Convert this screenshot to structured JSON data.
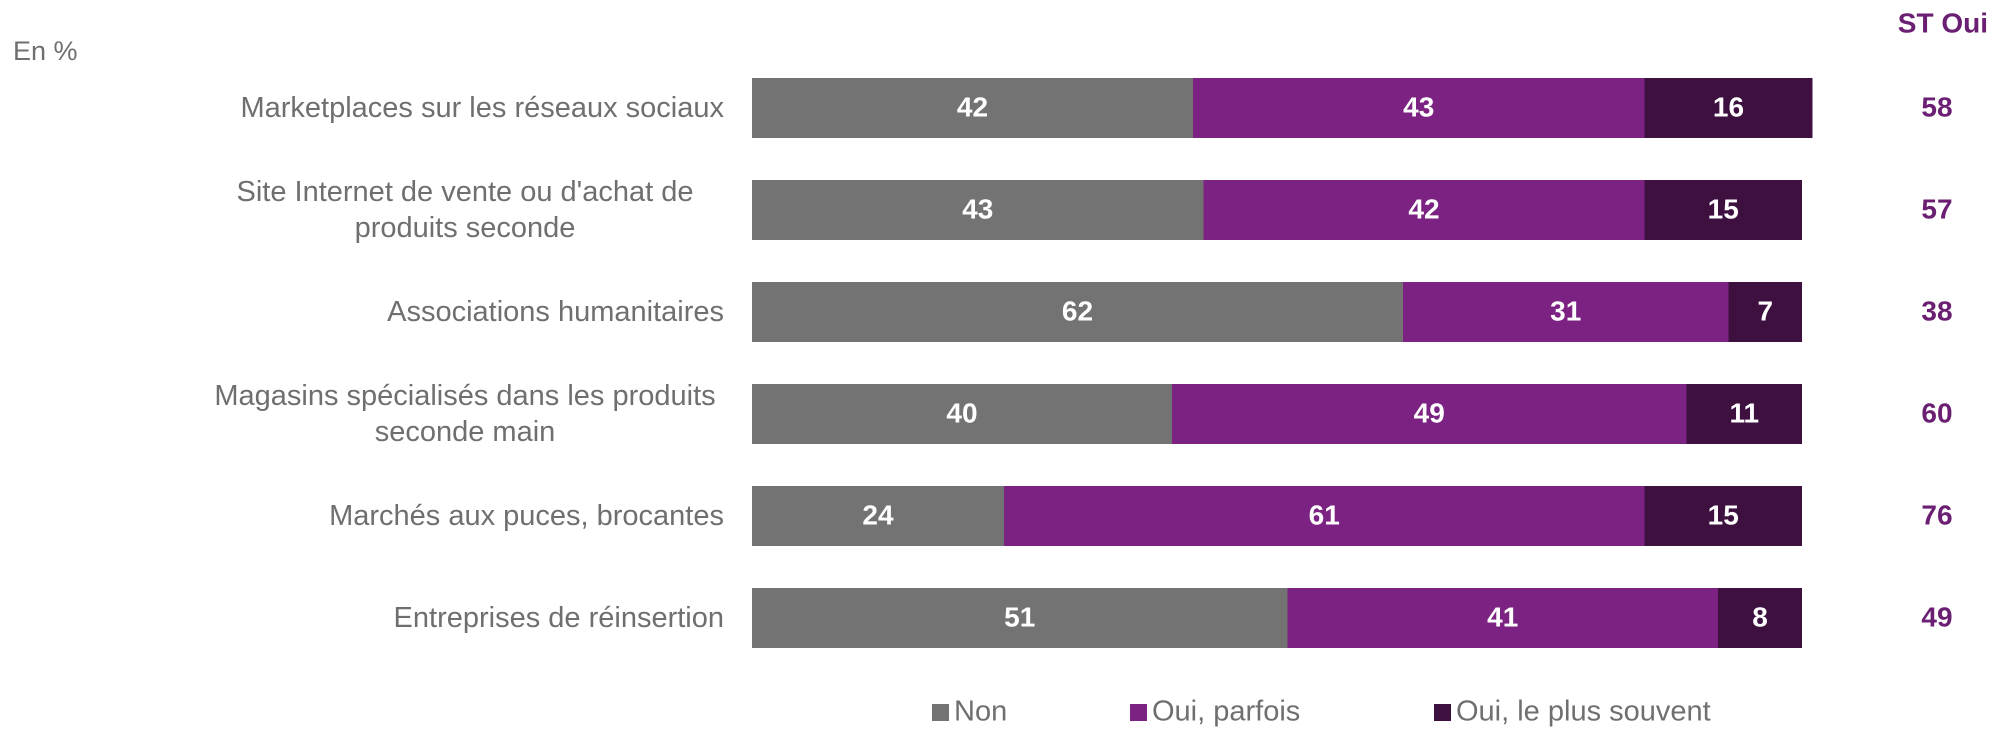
{
  "chart_data": {
    "type": "stacked_barh",
    "unit_note": "En %",
    "categories": [
      "Marketplaces sur les réseaux sociaux",
      "Site Internet de vente ou d'achat de produits seconde",
      "Associations humanitaires",
      "Magasins spécialisés dans les produits seconde main",
      "Marchés aux puces, brocantes",
      "Entreprises de réinsertion"
    ],
    "series": [
      {
        "name": "Non",
        "color": "#737373",
        "values": [
          42,
          43,
          62,
          40,
          24,
          51
        ]
      },
      {
        "name": "Oui, parfois",
        "color": "#7b2282",
        "values": [
          43,
          42,
          31,
          49,
          61,
          41
        ]
      },
      {
        "name": "Oui, le plus souvent",
        "color": "#3d1040",
        "values": [
          16,
          15,
          7,
          11,
          15,
          8
        ]
      }
    ],
    "xlim": [
      0,
      100
    ],
    "st_oui": {
      "label": "ST Oui",
      "color": "#6b1f72",
      "values": [
        58,
        57,
        38,
        60,
        76,
        49
      ]
    },
    "legend": "bottom"
  }
}
